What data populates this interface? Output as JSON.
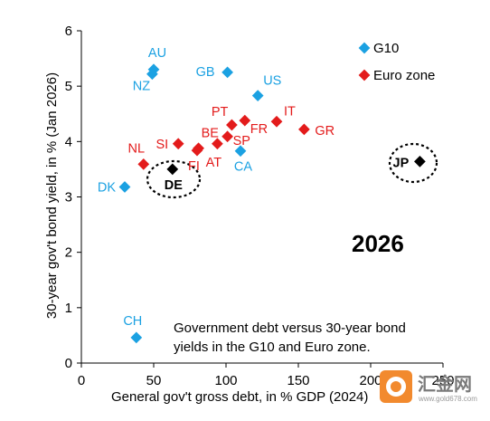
{
  "chart_data": {
    "type": "scatter",
    "xlabel": "General gov't gross debt, in % GDP (2024)",
    "ylabel": "30-year gov't bond yield, in % (Jan 2026)",
    "xlim": [
      0,
      250
    ],
    "ylim": [
      0,
      6
    ],
    "x_ticks": [
      "0",
      "50",
      "100",
      "150",
      "200",
      "250"
    ],
    "y_ticks": [
      "0",
      "1",
      "2",
      "3",
      "4",
      "5",
      "6"
    ],
    "grid": false,
    "legend_position": "top-right",
    "annotation_year": "2026",
    "annotation_text": [
      "Government debt versus 30-year bond",
      "yields in the G10 and Euro zone."
    ],
    "series": [
      {
        "name": "G10",
        "color": "#1BA1E2",
        "marker": "diamond",
        "points": [
          {
            "label": "AU",
            "x": 50,
            "y": 5.3
          },
          {
            "label": "NZ",
            "x": 49,
            "y": 5.22
          },
          {
            "label": "GB",
            "x": 101,
            "y": 5.25
          },
          {
            "label": "US",
            "x": 122,
            "y": 4.83
          },
          {
            "label": "CA",
            "x": 110,
            "y": 3.83
          },
          {
            "label": "DK",
            "x": 30,
            "y": 3.18
          },
          {
            "label": "CH",
            "x": 38,
            "y": 0.46
          }
        ]
      },
      {
        "name": "Euro zone",
        "color": "#E31B1B",
        "marker": "diamond",
        "points": [
          {
            "label": "PT",
            "x": 104,
            "y": 4.3
          },
          {
            "label": "BE",
            "x": 81,
            "y": 3.88
          },
          {
            "label": "FI",
            "x": 80,
            "y": 3.84
          },
          {
            "label": "SI",
            "x": 67,
            "y": 3.96
          },
          {
            "label": "AT",
            "x": 94,
            "y": 3.96
          },
          {
            "label": "SP",
            "x": 101,
            "y": 4.09
          },
          {
            "label": "FR",
            "x": 113,
            "y": 4.38
          },
          {
            "label": "IT",
            "x": 135,
            "y": 4.36
          },
          {
            "label": "GR",
            "x": 154,
            "y": 4.22
          },
          {
            "label": "NL",
            "x": 43,
            "y": 3.59
          }
        ]
      },
      {
        "name": "",
        "color": "#000000",
        "marker": "diamond",
        "points": [
          {
            "label": "DE",
            "x": 63,
            "y": 3.5
          },
          {
            "label": "JP",
            "x": 234,
            "y": 3.64
          }
        ]
      }
    ]
  },
  "watermark": {
    "text": "汇金网",
    "sub": "www.gold678.com"
  }
}
